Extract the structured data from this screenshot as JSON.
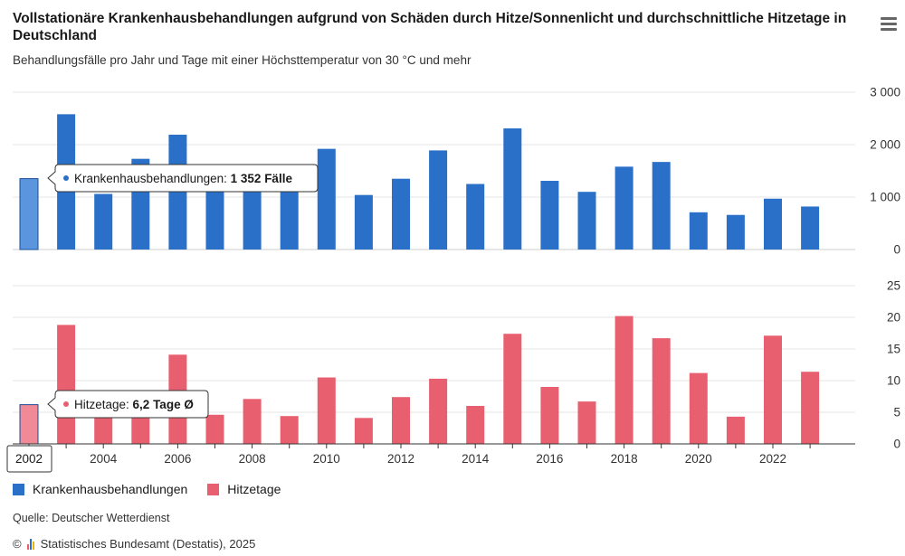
{
  "title": "Vollstationäre Krankenhausbehandlungen aufgrund von Schäden durch Hitze/Sonnenlicht und durchschnittliche Hitzetage in Deutschland",
  "subtitle": "Behandlungsfälle pro Jahr und Tage mit einer Höchsttemperatur von 30 °C und mehr",
  "menu_icon": "hamburger-menu-icon",
  "colors": {
    "blue": "#2a70c9",
    "blue_highlight": "#5a95de",
    "red": "#e8606f",
    "red_highlight": "#f08a96",
    "grid": "#e6e6e6"
  },
  "chart_data": {
    "type": "bar",
    "x": [
      2002,
      2003,
      2004,
      2005,
      2006,
      2007,
      2008,
      2009,
      2010,
      2011,
      2012,
      2013,
      2014,
      2015,
      2016,
      2017,
      2018,
      2019,
      2020,
      2021,
      2022,
      2023
    ],
    "x_tick_labels": [
      "2002",
      "2004",
      "2006",
      "2008",
      "2010",
      "2012",
      "2014",
      "2016",
      "2018",
      "2020",
      "2022"
    ],
    "highlighted_x": 2002,
    "panels": [
      {
        "series_name": "Krankenhausbehandlungen",
        "color": "#2a70c9",
        "ylim": [
          0,
          3000
        ],
        "y_ticks": [
          0,
          1000,
          2000,
          3000
        ],
        "y_tick_labels": [
          "0",
          "1 000",
          "2 000",
          "3 000"
        ],
        "values": [
          1352,
          2580,
          1060,
          1730,
          2190,
          1250,
          1200,
          1160,
          1920,
          1040,
          1350,
          1890,
          1250,
          2310,
          1310,
          1100,
          1580,
          1670,
          710,
          660,
          970,
          820
        ]
      },
      {
        "series_name": "Hitzetage",
        "color": "#e8606f",
        "ylim": [
          0,
          25
        ],
        "y_ticks": [
          0,
          5,
          10,
          15,
          20,
          25
        ],
        "y_tick_labels": [
          "0",
          "5",
          "10",
          "15",
          "20",
          "25"
        ],
        "values": [
          6.2,
          18.8,
          4.8,
          5.0,
          14.1,
          4.6,
          7.1,
          4.4,
          10.5,
          4.1,
          7.4,
          10.3,
          6.0,
          17.4,
          9.0,
          6.7,
          20.2,
          16.7,
          11.2,
          4.3,
          17.1,
          11.4
        ]
      }
    ],
    "tooltips": [
      {
        "label": "Krankenhausbehandlungen",
        "value": "1 352 Fälle"
      },
      {
        "label": "Hitzetage",
        "value": "6,2 Tage Ø"
      }
    ],
    "x_highlight_label": "2002",
    "legend_placement": "bottom-left"
  },
  "legend": [
    {
      "label": "Krankenhausbehandlungen",
      "color": "#2a70c9"
    },
    {
      "label": "Hitzetage",
      "color": "#e8606f"
    }
  ],
  "source": "Quelle: Deutscher Wetterdienst",
  "copyright": "Statistisches Bundesamt (Destatis), 2025",
  "copyright_symbol": "©"
}
